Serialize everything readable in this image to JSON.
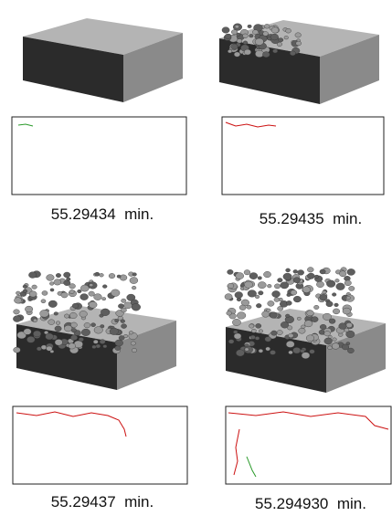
{
  "panels": [
    {
      "caption": "55.29434  min."
    },
    {
      "caption": "55.29435  min."
    },
    {
      "caption": "55.29437  min."
    },
    {
      "caption": "55.294930  min."
    }
  ]
}
